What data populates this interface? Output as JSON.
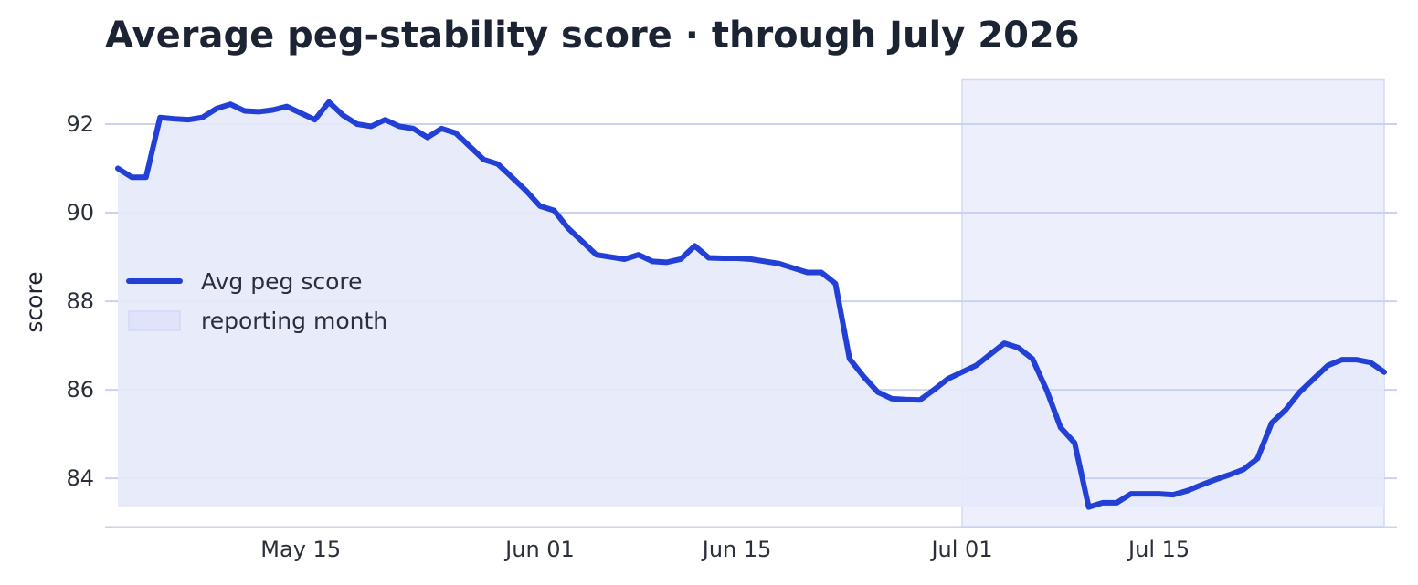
{
  "chart_data": {
    "type": "line",
    "title": "Average peg-stability score · through July 2026",
    "ylabel": "score",
    "xlabel": "",
    "ylim": [
      82.9,
      93.0
    ],
    "y_ticks": [
      84,
      86,
      88,
      90,
      92
    ],
    "x_ticks": [
      {
        "date": "2026-05-15",
        "label": "May 15"
      },
      {
        "date": "2026-06-01",
        "label": "Jun 01"
      },
      {
        "date": "2026-06-15",
        "label": "Jun 15"
      },
      {
        "date": "2026-07-01",
        "label": "Jul 01"
      },
      {
        "date": "2026-07-15",
        "label": "Jul 15"
      }
    ],
    "grid": "horizontal",
    "legend_position": "center-left",
    "fill_baseline": 83.35,
    "highlight": {
      "label": "reporting month",
      "start": "2026-07-01",
      "end": "2026-07-31"
    },
    "series": [
      {
        "name": "Avg peg score",
        "color": "#2340d6",
        "fill_color": "#e6e9fa",
        "x": [
          "2026-05-02",
          "2026-05-03",
          "2026-05-04",
          "2026-05-05",
          "2026-05-06",
          "2026-05-07",
          "2026-05-08",
          "2026-05-09",
          "2026-05-10",
          "2026-05-11",
          "2026-05-12",
          "2026-05-13",
          "2026-05-14",
          "2026-05-15",
          "2026-05-16",
          "2026-05-17",
          "2026-05-18",
          "2026-05-19",
          "2026-05-20",
          "2026-05-21",
          "2026-05-22",
          "2026-05-23",
          "2026-05-24",
          "2026-05-25",
          "2026-05-26",
          "2026-05-27",
          "2026-05-28",
          "2026-05-29",
          "2026-05-30",
          "2026-05-31",
          "2026-06-01",
          "2026-06-02",
          "2026-06-03",
          "2026-06-04",
          "2026-06-05",
          "2026-06-06",
          "2026-06-07",
          "2026-06-08",
          "2026-06-09",
          "2026-06-10",
          "2026-06-11",
          "2026-06-12",
          "2026-06-13",
          "2026-06-14",
          "2026-06-15",
          "2026-06-16",
          "2026-06-17",
          "2026-06-18",
          "2026-06-19",
          "2026-06-20",
          "2026-06-21",
          "2026-06-22",
          "2026-06-23",
          "2026-06-24",
          "2026-06-25",
          "2026-06-26",
          "2026-06-27",
          "2026-06-28",
          "2026-06-29",
          "2026-06-30",
          "2026-07-01",
          "2026-07-02",
          "2026-07-03",
          "2026-07-04",
          "2026-07-05",
          "2026-07-06",
          "2026-07-07",
          "2026-07-08",
          "2026-07-09",
          "2026-07-10",
          "2026-07-11",
          "2026-07-12",
          "2026-07-13",
          "2026-07-14",
          "2026-07-15",
          "2026-07-16",
          "2026-07-17",
          "2026-07-18",
          "2026-07-19",
          "2026-07-20",
          "2026-07-21",
          "2026-07-22",
          "2026-07-23",
          "2026-07-24",
          "2026-07-25",
          "2026-07-26",
          "2026-07-27",
          "2026-07-28",
          "2026-07-29",
          "2026-07-30",
          "2026-07-31"
        ],
        "values": [
          91.0,
          90.8,
          90.8,
          92.15,
          92.12,
          92.1,
          92.15,
          92.35,
          92.45,
          92.3,
          92.28,
          92.32,
          92.4,
          92.25,
          92.1,
          92.5,
          92.2,
          92.0,
          91.95,
          92.1,
          91.95,
          91.9,
          91.7,
          91.9,
          91.8,
          91.5,
          91.2,
          91.1,
          90.8,
          90.5,
          90.15,
          90.05,
          89.65,
          89.35,
          89.05,
          89.0,
          88.95,
          89.05,
          88.9,
          88.88,
          88.95,
          89.25,
          88.98,
          88.97,
          88.97,
          88.95,
          88.9,
          88.85,
          88.75,
          88.65,
          88.65,
          88.4,
          86.7,
          86.3,
          85.95,
          85.8,
          85.78,
          85.77,
          86.0,
          86.25,
          86.4,
          86.55,
          86.8,
          87.05,
          86.95,
          86.7,
          86.0,
          85.15,
          84.8,
          83.35,
          83.45,
          83.45,
          83.65,
          83.65,
          83.65,
          83.63,
          83.72,
          83.85,
          83.97,
          84.08,
          84.2,
          84.45,
          85.25,
          85.55,
          85.95,
          86.25,
          86.55,
          86.68,
          86.68,
          86.62,
          86.4
        ]
      }
    ]
  }
}
